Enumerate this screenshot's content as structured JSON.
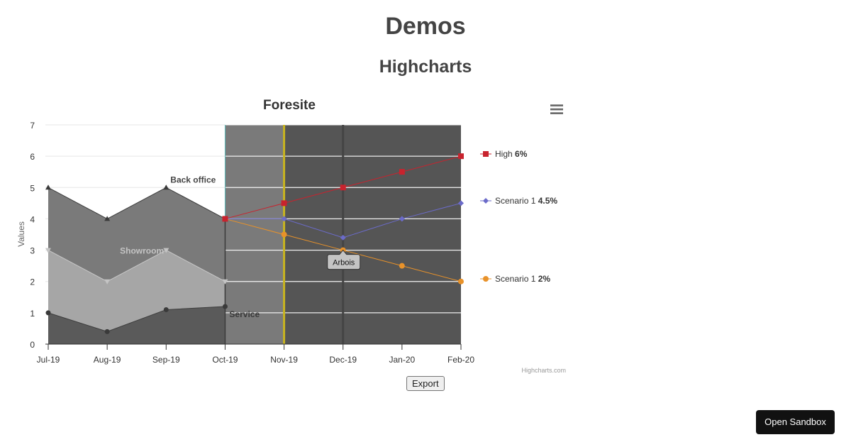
{
  "page": {
    "title": "Demos",
    "subtitle": "Highcharts",
    "export_label": "Export",
    "sandbox_label": "Open Sandbox"
  },
  "colors": {
    "back_office_area": "#7a7a7a",
    "showroom_area": "#a6a6a6",
    "service_area": "#5a5a5a",
    "forecast_light": "#7a7a7a",
    "forecast_dark": "#555555",
    "today_line": "#c8b420",
    "high": "#c8232e",
    "scenario_45": "#6b6bc9",
    "scenario_2": "#e8922a"
  },
  "chart_data": {
    "type": "area",
    "title": "Foresite",
    "ylabel": "Values",
    "ylim": [
      0,
      7
    ],
    "yticks": [
      0,
      1,
      2,
      3,
      4,
      5,
      6,
      7
    ],
    "categories": [
      "Jul-19",
      "Aug-19",
      "Sep-19",
      "Oct-19",
      "Nov-19",
      "Dec-19",
      "Jan-20",
      "Feb-20"
    ],
    "grid": true,
    "legend_position": "right",
    "credits": "Highcharts.com",
    "menu_icon": "hamburger-icon",
    "area_series": [
      {
        "name": "Back office",
        "x": [
          0,
          1,
          2,
          3
        ],
        "values": [
          5,
          4,
          5,
          4
        ],
        "marker": "triangle"
      },
      {
        "name": "Showroom",
        "x": [
          0,
          1,
          2,
          3
        ],
        "values": [
          3,
          2,
          3,
          2
        ],
        "marker": "triangle-down"
      },
      {
        "name": "Service",
        "x": [
          0,
          1,
          2,
          3
        ],
        "values": [
          1,
          0.4,
          1.1,
          1.2
        ],
        "marker": "circle"
      }
    ],
    "forecast_bands": [
      {
        "from": 3,
        "to": 4,
        "shade": "light"
      },
      {
        "from": 4,
        "to": 7,
        "shade": "dark"
      }
    ],
    "plot_lines": [
      {
        "x": 4,
        "kind": "today"
      },
      {
        "x": 5,
        "kind": "marker"
      }
    ],
    "line_series": [
      {
        "name": "High",
        "legend_value": "6%",
        "x": [
          3,
          4,
          5,
          6,
          7
        ],
        "values": [
          4,
          4.5,
          5,
          5.5,
          6
        ],
        "marker": "square"
      },
      {
        "name": "Scenario 1",
        "legend_value": "4.5%",
        "x": [
          3,
          4,
          5,
          6,
          7
        ],
        "values": [
          4,
          4,
          3.4,
          4,
          4.5
        ],
        "marker": "diamond"
      },
      {
        "name": "Scenario 1",
        "legend_value": "2%",
        "x": [
          3,
          4,
          5,
          6,
          7
        ],
        "values": [
          4,
          3.5,
          3,
          2.5,
          2
        ],
        "marker": "circle"
      }
    ],
    "tooltip": {
      "text": "Arbois",
      "x": 5,
      "y": 3
    }
  }
}
